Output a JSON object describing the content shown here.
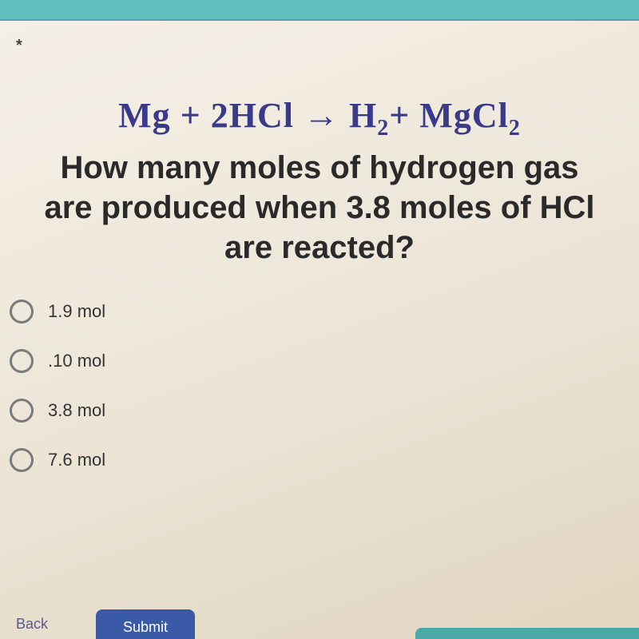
{
  "header": {
    "required_marker": "*"
  },
  "equation": {
    "text_html": "Mg + 2HCl → H<sub>2</sub>+ MgCl<sub>2</sub>",
    "color": "#3a3a8a",
    "fontsize": 44
  },
  "question": {
    "line1": "How many moles of hydrogen gas",
    "line2": "are produced when 3.8 moles of HCl",
    "line3": "are reacted?",
    "color": "#2a2a2a",
    "fontsize": 40
  },
  "options": [
    {
      "label": "1.9 mol"
    },
    {
      "label": ".10 mol"
    },
    {
      "label": "3.8 mol"
    },
    {
      "label": "7.6 mol"
    }
  ],
  "footer": {
    "back_label": "Back",
    "submit_label": "Submit"
  },
  "colors": {
    "top_bar": "#5fbfbf",
    "radio_border": "#7a7a7a",
    "submit_bg": "#3a5aa8",
    "progress_bg": "#4aa8a8"
  }
}
